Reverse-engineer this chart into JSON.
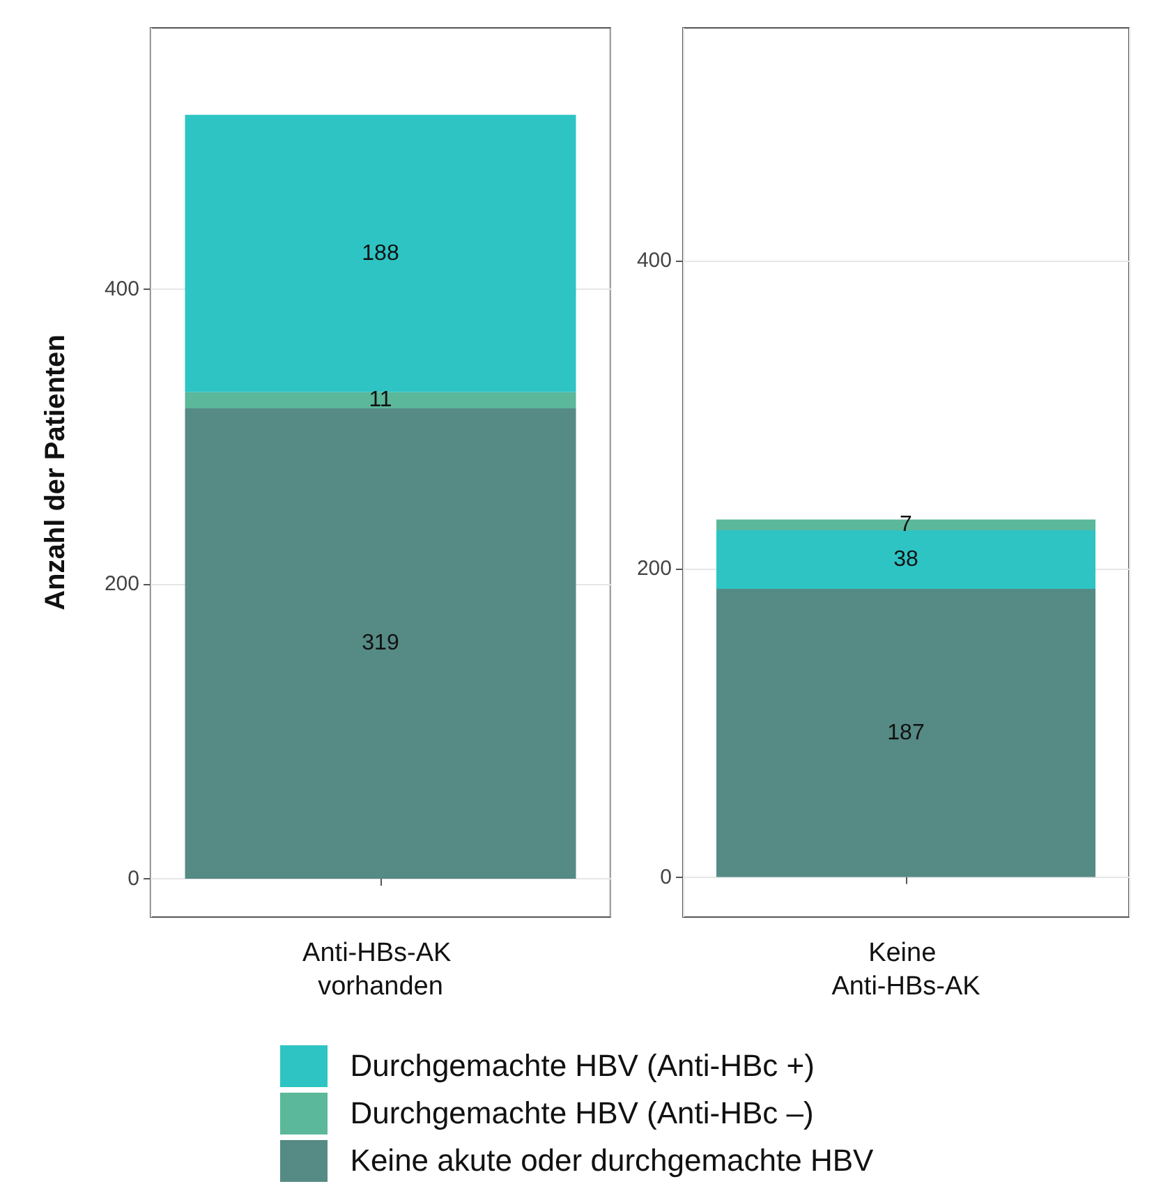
{
  "chart_data": [
    {
      "type": "bar",
      "stacked": true,
      "ylabel": "Anzahl der Patienten",
      "categories": [
        "Anti-HBs-AK vorhanden"
      ],
      "ylim": [
        -26,
        577
      ],
      "yticks": [
        0,
        200,
        400
      ],
      "grid": true,
      "data_labels": true,
      "legend": "bottom",
      "series": [
        {
          "name": "Keine akute oder durchgemachte HBV",
          "color": "#568a85",
          "values": [
            319
          ]
        },
        {
          "name": "Durchgemachte HBV (Anti-HBc –)",
          "color": "#5bb89a",
          "values": [
            11
          ]
        },
        {
          "name": "Durchgemachte HBV (Anti-HBc +)",
          "color": "#2ec4c4",
          "values": [
            188
          ]
        }
      ]
    },
    {
      "type": "bar",
      "stacked": true,
      "categories": [
        "Keine Anti-HBs-AK"
      ],
      "ylim": [
        -26,
        551
      ],
      "yticks": [
        0,
        200,
        400
      ],
      "grid": true,
      "data_labels": true,
      "series": [
        {
          "name": "Keine akute oder durchgemachte HBV",
          "color": "#568a85",
          "values": [
            187
          ]
        },
        {
          "name": "Durchgemachte HBV (Anti-HBc +)",
          "color": "#2ec4c4",
          "values": [
            38
          ]
        },
        {
          "name": "Durchgemachte HBV (Anti-HBc –)",
          "color": "#5bb89a",
          "values": [
            7
          ]
        }
      ]
    }
  ]
}
